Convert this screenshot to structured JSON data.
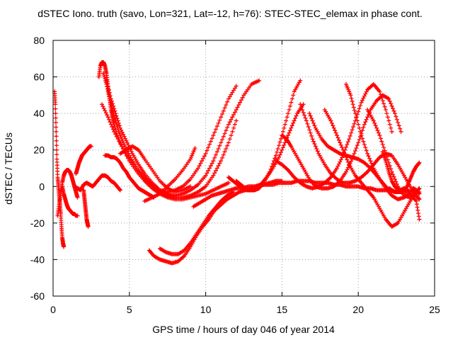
{
  "chart_data": {
    "type": "scatter",
    "title": "dSTEC Iono. truth (savo, Lon=321, Lat=-12, h=76): STEC-STEC_elemax in phase cont.",
    "xlabel": "GPS time / hours of day 046 of year 2014",
    "ylabel": "dSTEC  / TECUs",
    "xlim": [
      0,
      25
    ],
    "ylim": [
      -60,
      80
    ],
    "xticks": [
      0,
      5,
      10,
      15,
      20,
      25
    ],
    "yticks": [
      -60,
      -40,
      -20,
      0,
      20,
      40,
      60,
      80
    ],
    "grid": true,
    "marker": "+",
    "color": "#ff0000",
    "series": [
      {
        "x": [
          0.1,
          0.15,
          0.2,
          0.25,
          0.3,
          0.35,
          0.4,
          0.45,
          0.5,
          0.55,
          0.6,
          0.65,
          0.7
        ],
        "y": [
          52,
          45,
          30,
          15,
          5,
          0,
          -5,
          -10,
          -15,
          -22,
          -28,
          -31,
          -33
        ]
      },
      {
        "x": [
          0.3,
          0.4,
          0.5,
          0.6,
          0.7,
          0.8,
          0.9,
          1.0,
          1.1,
          1.2,
          1.3,
          1.4,
          1.5,
          1.6
        ],
        "y": [
          -16,
          -10,
          -4,
          2,
          6,
          8,
          9,
          9,
          8,
          6,
          3,
          0,
          -3,
          -6
        ]
      },
      {
        "x": [
          0.6,
          0.7,
          0.8,
          0.9,
          1.0,
          1.1,
          1.2,
          1.3,
          1.4,
          1.5,
          1.6
        ],
        "y": [
          0,
          -4,
          -7,
          -10,
          -12,
          -13,
          -14,
          -15,
          -15,
          -16,
          -16
        ]
      },
      {
        "x": [
          1.5,
          1.6,
          1.7,
          1.8,
          1.9,
          2.0,
          2.1,
          2.2,
          2.3,
          2.4,
          2.5
        ],
        "y": [
          7,
          10,
          13,
          15,
          17,
          18,
          19,
          20,
          21,
          22,
          22
        ]
      },
      {
        "x": [
          1.4,
          1.6,
          1.8,
          2.0,
          2.2,
          2.4,
          2.6,
          2.8,
          3.0,
          3.2,
          3.4,
          3.6,
          3.8,
          4.0,
          4.2,
          4.4
        ],
        "y": [
          0,
          -1,
          -2,
          1,
          2,
          1,
          0,
          2,
          4,
          6,
          6,
          5,
          3,
          2,
          0,
          -2
        ]
      },
      {
        "x": [
          2.0,
          2.05,
          2.1,
          2.15,
          2.2,
          2.25,
          2.3
        ],
        "y": [
          -2,
          -6,
          -10,
          -14,
          -18,
          -20,
          -22
        ]
      },
      {
        "x": [
          3.0,
          3.1,
          3.2,
          3.3,
          3.4,
          3.5,
          3.6,
          3.7,
          3.8,
          3.9,
          4.0,
          4.2,
          4.5,
          5.0,
          5.5,
          6.0,
          6.5,
          7.0,
          7.5,
          8.0,
          8.5,
          9.0,
          9.5,
          10.0,
          10.5,
          11.0,
          11.5
        ],
        "y": [
          60,
          66,
          68,
          68,
          66,
          62,
          55,
          48,
          42,
          38,
          34,
          28,
          22,
          14,
          8,
          3,
          -1,
          -4,
          -6,
          -7,
          -7,
          -6,
          -5,
          -4,
          -2,
          0,
          2
        ]
      },
      {
        "x": [
          3.3,
          3.5,
          3.7,
          3.9,
          4.1,
          4.3,
          4.6,
          5.0,
          5.5,
          6.0,
          6.5,
          7.0,
          7.5,
          8.0,
          8.5,
          9.0,
          9.5,
          10.0,
          10.5,
          11.0,
          11.5,
          12.0
        ],
        "y": [
          62,
          56,
          48,
          42,
          36,
          30,
          24,
          17,
          10,
          5,
          1,
          -3,
          -5,
          -6,
          -6,
          -5,
          -3,
          0,
          6,
          14,
          24,
          36
        ]
      },
      {
        "x": [
          3.5,
          3.8,
          4.1,
          4.4,
          4.8,
          5.2,
          5.6,
          6.0,
          6.5,
          7.0,
          7.5,
          8.0,
          8.5,
          9.0,
          9.5,
          10.0,
          10.5,
          11.0,
          11.5,
          12.0,
          12.5,
          13.0,
          13.5
        ],
        "y": [
          58,
          48,
          40,
          32,
          25,
          18,
          12,
          7,
          2,
          -2,
          -4,
          -5,
          -4,
          -2,
          1,
          6,
          14,
          24,
          34,
          42,
          50,
          56,
          58
        ]
      },
      {
        "x": [
          3.2,
          3.6,
          4.0,
          4.5,
          5.0,
          5.5,
          6.0,
          6.5,
          7.0,
          7.5,
          8.0,
          8.5,
          9.0,
          9.5,
          10.0,
          10.5,
          11.0,
          11.5,
          12.0
        ],
        "y": [
          45,
          38,
          30,
          22,
          15,
          9,
          4,
          0,
          -2,
          -3,
          -2,
          0,
          4,
          10,
          18,
          28,
          38,
          48,
          55
        ]
      },
      {
        "x": [
          4.4,
          4.8,
          5.2,
          5.6,
          6.0,
          6.5,
          7.0,
          7.5,
          8.0,
          8.5,
          9.0
        ],
        "y": [
          18,
          20,
          22,
          20,
          15,
          9,
          3,
          -1,
          -3,
          -2,
          0
        ]
      },
      {
        "x": [
          3.4,
          3.6,
          3.8,
          4.0,
          4.2,
          4.4,
          4.6,
          4.8,
          5.0,
          5.2,
          5.4,
          5.6,
          5.8,
          6.0,
          6.2,
          6.4,
          6.6
        ],
        "y": [
          17,
          17,
          16,
          16,
          15,
          13,
          10,
          8,
          5,
          3,
          1,
          -1,
          -2,
          -3,
          -4,
          -5,
          -6
        ]
      },
      {
        "x": [
          6.0,
          6.5,
          7.0,
          7.5,
          8.0,
          8.5,
          9.0,
          9.3
        ],
        "y": [
          -8,
          -6,
          -4,
          0,
          4,
          9,
          15,
          21
        ]
      },
      {
        "x": [
          6.3,
          6.6,
          7.0,
          7.4,
          7.8,
          8.2,
          8.6,
          9.0,
          9.4,
          9.8,
          10.2,
          10.6,
          11.0,
          11.4,
          11.8,
          12.2,
          12.6,
          13.0,
          13.4,
          13.8,
          14.2,
          14.6,
          15.0
        ],
        "y": [
          -35,
          -38,
          -40,
          -41,
          -42,
          -41,
          -38,
          -33,
          -27,
          -22,
          -18,
          -13,
          -10,
          -7,
          -5,
          -3,
          -2,
          -1,
          0,
          1,
          2,
          3,
          3
        ]
      },
      {
        "x": [
          7.0,
          7.4,
          7.8,
          8.2,
          8.6,
          9.0,
          9.4,
          9.8,
          10.2,
          10.6,
          11.0,
          11.4,
          11.8
        ],
        "y": [
          -34,
          -36,
          -37,
          -37,
          -35,
          -31,
          -26,
          -21,
          -16,
          -12,
          -8,
          -5,
          -3
        ]
      },
      {
        "x": [
          9.2,
          9.6,
          10.0,
          10.4,
          10.8,
          11.2,
          11.6,
          12.0,
          12.4,
          12.8,
          13.2,
          13.6,
          14.0,
          14.4,
          14.8,
          15.2,
          15.6,
          16.0,
          16.4,
          16.8,
          17.2,
          17.6,
          18.0,
          18.4,
          18.8,
          19.2,
          19.6,
          20.0,
          20.4,
          20.8,
          21.2,
          21.6,
          22.0,
          22.4,
          22.8,
          23.2,
          23.6,
          24.0
        ],
        "y": [
          -11,
          -9,
          -7,
          -5,
          -4,
          -3,
          -2,
          -1,
          -1,
          0,
          0,
          1,
          1,
          1,
          2,
          2,
          2,
          3,
          3,
          3,
          2,
          2,
          2,
          1,
          1,
          0,
          0,
          0,
          -1,
          -1,
          -2,
          -2,
          -2,
          -3,
          -3,
          -3,
          -3,
          -3
        ]
      },
      {
        "x": [
          11.5,
          11.8,
          12.1,
          12.4,
          12.7,
          13.0,
          13.3,
          13.6,
          14.0,
          14.4,
          14.8,
          15.2,
          15.6,
          16.0,
          16.4
        ],
        "y": [
          5,
          3,
          1,
          -1,
          -2,
          -2,
          -1,
          1,
          5,
          10,
          16,
          24,
          32,
          40,
          45
        ]
      },
      {
        "x": [
          12.0,
          12.3,
          12.6,
          12.9,
          13.2,
          13.5,
          13.8,
          14.2,
          14.6,
          15.0,
          15.4,
          15.8,
          16.2
        ],
        "y": [
          3,
          1,
          -1,
          -2,
          -2,
          -1,
          2,
          8,
          17,
          28,
          40,
          52,
          58
        ]
      },
      {
        "x": [
          15.0,
          15.3,
          15.6,
          16.0,
          16.4,
          16.8,
          17.2,
          17.6,
          18.0,
          18.4,
          18.8,
          19.2,
          19.6,
          20.0,
          20.4,
          20.8,
          21.2,
          21.6,
          22.0,
          22.4,
          22.8
        ],
        "y": [
          28,
          26,
          22,
          16,
          10,
          4,
          0,
          -1,
          -1,
          0,
          3,
          8,
          15,
          24,
          34,
          42,
          47,
          50,
          48,
          40,
          30
        ]
      },
      {
        "x": [
          14.6,
          15.0,
          15.4,
          15.8,
          16.2,
          16.6,
          17.0,
          17.4,
          17.8,
          18.2,
          18.6,
          19.0,
          19.4,
          19.8,
          20.2,
          20.6,
          21.0,
          21.4,
          21.8,
          22.2
        ],
        "y": [
          14,
          12,
          9,
          5,
          2,
          0,
          -1,
          0,
          2,
          5,
          10,
          17,
          26,
          36,
          46,
          53,
          56,
          52,
          42,
          30
        ]
      },
      {
        "x": [
          16.2,
          16.6,
          17.0,
          17.4,
          17.8,
          18.2,
          18.6,
          19.0,
          19.4,
          19.8,
          20.2,
          20.6,
          21.0,
          21.4,
          21.8,
          22.2,
          22.6,
          23.0,
          23.4,
          23.8,
          24.0
        ],
        "y": [
          45,
          36,
          26,
          18,
          12,
          7,
          4,
          2,
          2,
          3,
          5,
          8,
          12,
          16,
          18,
          17,
          12,
          6,
          0,
          -5,
          -7
        ]
      },
      {
        "x": [
          16.8,
          17.2,
          17.6,
          18.0,
          18.4,
          18.8,
          19.2,
          19.6,
          20.0,
          20.4,
          20.8,
          21.2,
          21.6,
          22.0
        ],
        "y": [
          40,
          32,
          26,
          22,
          20,
          18,
          17,
          16,
          15,
          13,
          10,
          6,
          2,
          -2
        ]
      },
      {
        "x": [
          17.8,
          18.2,
          18.6,
          19.0,
          19.4,
          19.8,
          20.2,
          20.6,
          21.0,
          21.4,
          21.8,
          22.2,
          22.6,
          23.0,
          23.4,
          23.8,
          24.0
        ],
        "y": [
          42,
          36,
          28,
          20,
          12,
          6,
          2,
          -2,
          -6,
          -12,
          -18,
          -22,
          -20,
          -14,
          -8,
          -3,
          -1
        ]
      },
      {
        "x": [
          19.2,
          19.5,
          19.8,
          20.2,
          20.6,
          21.0,
          21.4,
          21.8,
          22.2,
          22.6,
          23.0,
          23.4,
          23.8,
          24.0
        ],
        "y": [
          56,
          50,
          40,
          28,
          18,
          10,
          4,
          -1,
          -5,
          -7,
          -6,
          -4,
          -8,
          -18
        ]
      },
      {
        "x": [
          20.6,
          21.0,
          21.4,
          21.8,
          22.2,
          22.6,
          23.0,
          23.4,
          23.8
        ],
        "y": [
          42,
          36,
          28,
          18,
          8,
          0,
          -5,
          -6,
          -4
        ]
      },
      {
        "x": [
          21.6,
          21.8,
          22.0,
          22.2,
          22.4,
          22.6,
          22.8,
          23.0,
          23.2,
          23.4,
          23.6,
          23.8,
          24.0
        ],
        "y": [
          19,
          14,
          8,
          3,
          0,
          -2,
          -3,
          -2,
          0,
          4,
          8,
          11,
          13
        ]
      },
      {
        "x": [
          22.0,
          22.2,
          22.4,
          22.6,
          22.8,
          23.0,
          23.2,
          23.4,
          23.6,
          23.8,
          24.0
        ],
        "y": [
          -1,
          -2,
          -3,
          -3,
          -2,
          -1,
          -2,
          -3,
          -1,
          -2,
          -4
        ]
      }
    ]
  }
}
